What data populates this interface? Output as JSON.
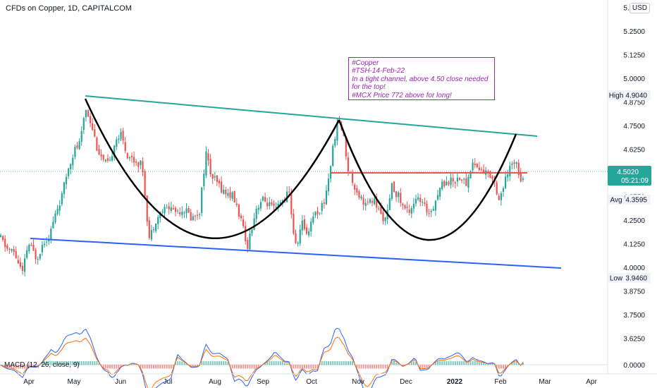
{
  "header": {
    "title": "CFDs on Copper, 1D, CAPITALCOM",
    "currency": "USD"
  },
  "annotation": {
    "lines": [
      "#Copper",
      "#TSH-14-Feb-22",
      "In a tight channel, above 4.50 close needed",
      "for the top!",
      "#MCX Price 772 above for long!"
    ]
  },
  "macd": {
    "label": "MACD (12, 26, close, 9)",
    "value": "0.0000"
  },
  "chart_data": {
    "type": "candlestick",
    "title": "CFDs on Copper, 1D, CAPITALCOM",
    "y_ticks": [
      "5.3750",
      "5.2500",
      "5.1250",
      "5.0000",
      "4.8750",
      "4.7500",
      "4.6250",
      "4.5000",
      "4.3750",
      "4.2500",
      "4.1250",
      "4.0000",
      "3.8750",
      "3.7500",
      "3.6250"
    ],
    "x_ticks": [
      "Apr",
      "May",
      "Jun",
      "Jul",
      "Aug",
      "Sep",
      "Oct",
      "Nov",
      "Dec",
      "2022",
      "Feb",
      "Mar",
      "Apr"
    ],
    "price_labels": {
      "high": {
        "label": "High",
        "value": "4.9040"
      },
      "current": {
        "value": "4.5020",
        "countdown": "05:21:09"
      },
      "avg": {
        "label": "Avg",
        "value": "4.3595"
      },
      "low": {
        "label": "Low",
        "value": "3.9460"
      }
    },
    "colors": {
      "up": "#26a69a",
      "down": "#ef5350",
      "resistance": "#26a69a",
      "support": "#2962ff",
      "cups": "#000000",
      "level": "#ef5350",
      "note": "#9c27b0"
    }
  }
}
